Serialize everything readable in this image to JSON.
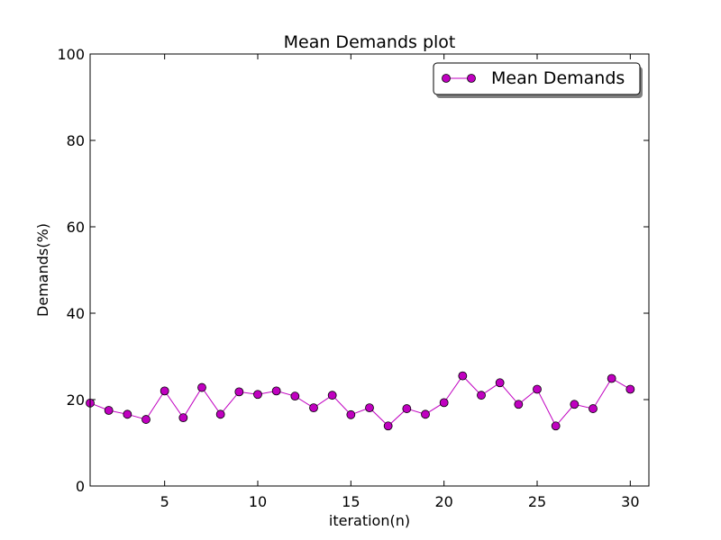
{
  "chart_data": {
    "type": "line",
    "title": "Mean Demands plot",
    "xlabel": "iteration(n)",
    "ylabel": "Demands(%)",
    "xlim": [
      1,
      31
    ],
    "ylim": [
      0,
      100
    ],
    "xticks": [
      5,
      10,
      15,
      20,
      25,
      30
    ],
    "yticks": [
      0,
      20,
      40,
      60,
      80,
      100
    ],
    "grid": false,
    "legend_position": "top-right",
    "series": [
      {
        "name": "Mean Demands",
        "color": "#c000c0",
        "marker": "circle",
        "x": [
          1,
          2,
          3,
          4,
          5,
          6,
          7,
          8,
          9,
          10,
          11,
          12,
          13,
          14,
          15,
          16,
          17,
          18,
          19,
          20,
          21,
          22,
          23,
          24,
          25,
          26,
          27,
          28,
          29,
          30
        ],
        "y": [
          19.2,
          17.5,
          16.6,
          15.4,
          22.0,
          15.8,
          22.8,
          16.6,
          21.8,
          21.2,
          22.0,
          20.8,
          18.1,
          21.0,
          16.5,
          18.1,
          13.9,
          17.9,
          16.6,
          19.3,
          25.5,
          21.0,
          23.9,
          18.9,
          22.4,
          13.9,
          18.9,
          17.9,
          24.9,
          22.4
        ]
      }
    ]
  }
}
